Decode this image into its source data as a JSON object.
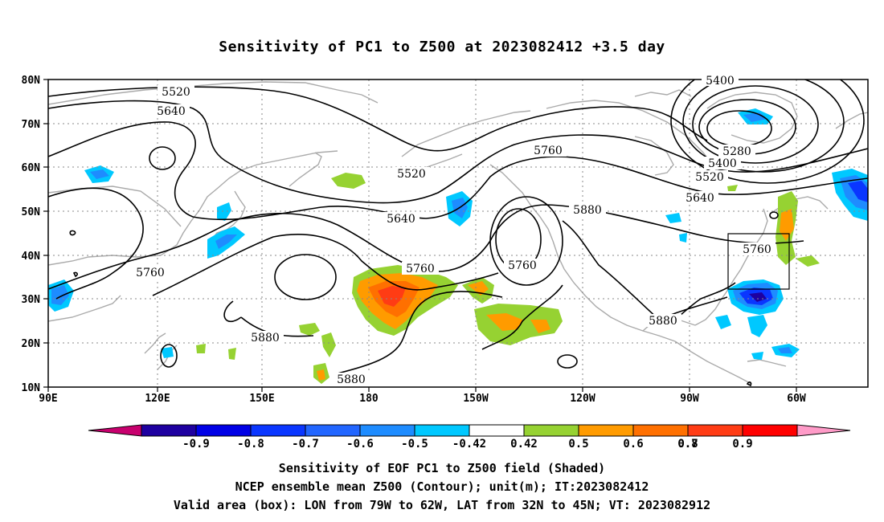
{
  "title": "Sensitivity of PC1 to Z500 at 2023082412 +3.5 day",
  "lat_ticks": [
    "10N",
    "20N",
    "30N",
    "40N",
    "50N",
    "60N",
    "70N",
    "80N"
  ],
  "lon_ticks": [
    "90E",
    "120E",
    "150E",
    "180",
    "150W",
    "120W",
    "90W",
    "60W"
  ],
  "contour_labels": [
    {
      "text": "5520"
    },
    {
      "text": "5640"
    },
    {
      "text": "5520"
    },
    {
      "text": "5640"
    },
    {
      "text": "5760"
    },
    {
      "text": "5760"
    },
    {
      "text": "5760"
    },
    {
      "text": "5880"
    },
    {
      "text": "5880"
    },
    {
      "text": "5880"
    },
    {
      "text": "5880"
    },
    {
      "text": "5760"
    },
    {
      "text": "5400"
    },
    {
      "text": "5280"
    },
    {
      "text": "5400"
    },
    {
      "text": "5520"
    },
    {
      "text": "5640"
    },
    {
      "text": "5760"
    }
  ],
  "colorbar": {
    "labels": [
      "-0.9",
      "-0.8",
      "-0.7",
      "-0.6",
      "-0.5",
      "-0.42",
      "0.42",
      "0.5",
      "0.6",
      "0.7",
      "0.8",
      "0.9"
    ],
    "colors": [
      "#1e00a0",
      "#0000e6",
      "#0a36ff",
      "#2266ff",
      "#1e8cff",
      "#00c8ff",
      "#ffffff",
      "#96d232",
      "#ff9b00",
      "#ff7000",
      "#ff3c14",
      "#ff0000"
    ],
    "low_color": "#c8006e",
    "high_color": "#ff9bc8"
  },
  "footer": {
    "line1": "Sensitivity of EOF PC1 to Z500 field (Shaded)",
    "line2": "NCEP ensemble mean Z500 (Contour); unit(m); IT:2023082412",
    "line3": "Valid area (box): LON from 79W to 62W, LAT from 32N to 45N; VT: 2023082912"
  }
}
